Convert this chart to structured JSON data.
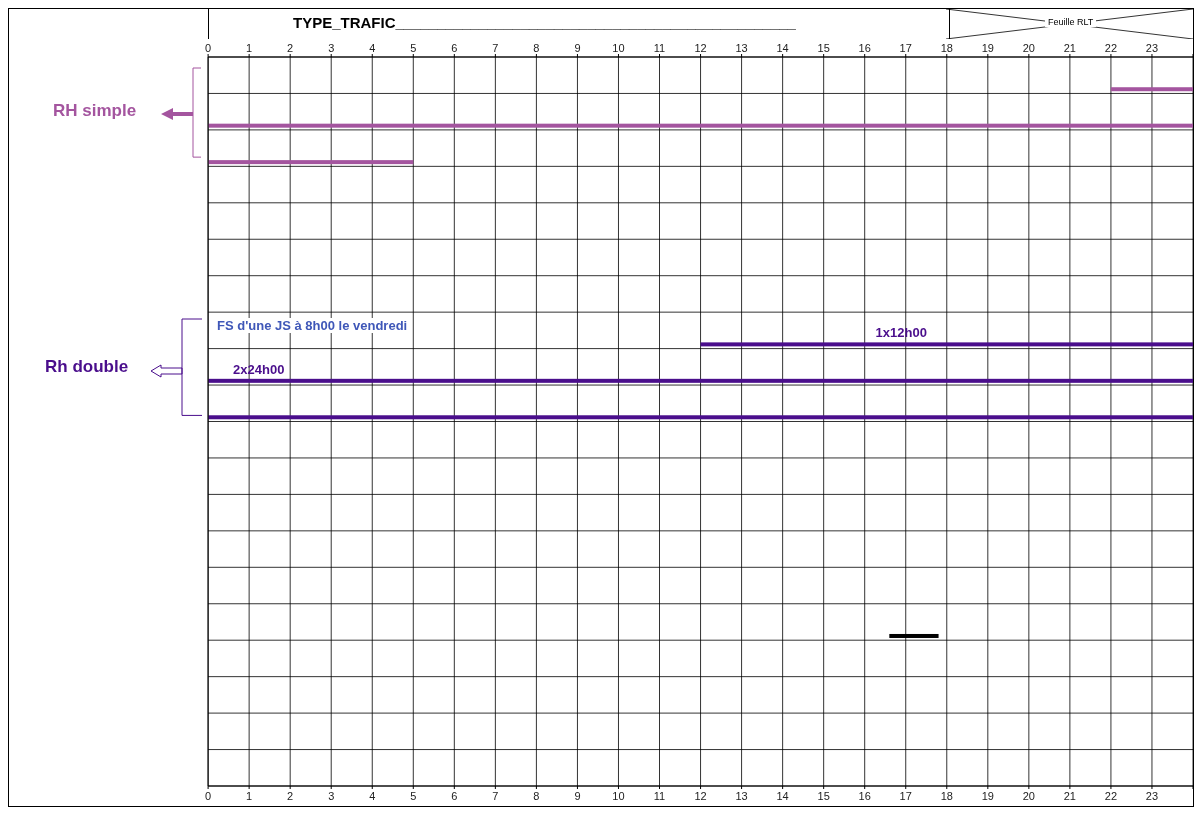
{
  "chart_data": {
    "type": "bar",
    "orientation": "horizontal",
    "title": "TYPE_TRAFIC________________________________________________",
    "categories": [
      null,
      null,
      null,
      null,
      null,
      null,
      null,
      null,
      null,
      null,
      null,
      null,
      null,
      null,
      null,
      null,
      null,
      null,
      null,
      null
    ],
    "values": [
      2,
      24,
      5,
      null,
      null,
      null,
      null,
      12,
      24,
      24,
      null,
      null,
      null,
      null,
      null,
      1.2,
      null,
      null,
      null,
      null
    ],
    "base": [
      22,
      0,
      0,
      null,
      null,
      null,
      null,
      12,
      0,
      0,
      null,
      null,
      null,
      null,
      null,
      16.6,
      null,
      null,
      null,
      null
    ],
    "colors": [
      "#a4559f",
      "#a4559f",
      "#a4559f",
      null,
      null,
      null,
      null,
      "#4a0e8c",
      "#4a0e8c",
      "#4a0e8c",
      null,
      null,
      null,
      null,
      null,
      "#000000",
      null,
      null,
      null,
      null
    ],
    "value_labels": [
      null,
      null,
      null,
      null,
      null,
      null,
      null,
      "1x12h00",
      "2x24h00",
      null,
      null,
      null,
      null,
      null,
      null,
      null,
      null,
      null,
      null,
      null
    ],
    "xlim": [
      0,
      24
    ],
    "xticks": [
      0,
      1,
      2,
      3,
      4,
      5,
      6,
      7,
      8,
      9,
      10,
      11,
      12,
      13,
      14,
      15,
      16,
      17,
      18,
      19,
      20,
      21,
      22,
      23,
      {
        "value": 24,
        "label": null
      }
    ],
    "x2lim": [
      0,
      24
    ],
    "x2ticks": [
      0,
      1,
      2,
      3,
      4,
      5,
      6,
      7,
      8,
      9,
      10,
      11,
      12,
      13,
      14,
      15,
      16,
      17,
      18,
      19,
      20,
      21,
      22,
      23,
      {
        "value": 24,
        "label": null
      }
    ],
    "grid": true,
    "annotations": [
      "RH simple",
      "Rh double",
      "FS d'une JS à 8h00 le vendredi",
      "Feuille RLT"
    ]
  }
}
